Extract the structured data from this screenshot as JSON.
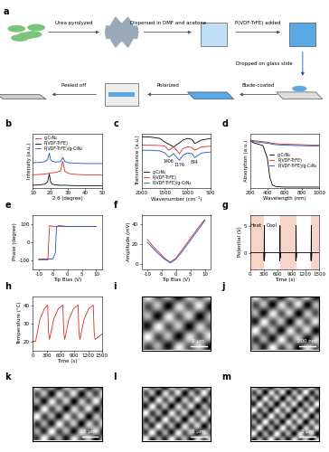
{
  "schematic": {
    "panel": "a",
    "steps_top": [
      "Urea pyrolyzed",
      "Dispersed in DMF and acetone",
      "P(VDF-TrFE) added"
    ],
    "down_step": "Dropped on glass slide",
    "steps_bottom": [
      "Peeled off",
      "Polarized",
      "Blade-coated"
    ]
  },
  "chart_data": [
    {
      "panel": "b",
      "type": "line",
      "xlabel": "2 θ (degree)",
      "ylabel": "Intensity (a.u.)",
      "x": [
        10,
        14,
        17,
        18.5,
        19.5,
        20.2,
        21,
        23,
        26,
        27.3,
        28.5,
        31,
        35,
        40,
        45,
        50
      ],
      "series": [
        {
          "name": "g-C₃N₄",
          "color": "#d62728",
          "values": [
            3.3,
            3.4,
            3.5,
            3.6,
            3.7,
            3.8,
            3.8,
            3.9,
            4.3,
            6.8,
            4.2,
            3.6,
            3.4,
            3.3,
            3.3,
            3.2
          ]
        },
        {
          "name": "P(VDF-TrFE)",
          "color": "#000000",
          "values": [
            0.6,
            0.7,
            0.9,
            1.5,
            3.5,
            1.6,
            0.9,
            0.7,
            0.6,
            0.6,
            0.6,
            0.55,
            0.5,
            0.5,
            0.5,
            0.5
          ]
        },
        {
          "name": "P(VDF-TrFE)/g-C₃N₄",
          "color": "#1f4fbf",
          "values": [
            6.4,
            6.5,
            6.7,
            7.2,
            8.9,
            7.3,
            6.8,
            6.6,
            6.7,
            7.8,
            6.7,
            6.4,
            6.3,
            6.2,
            6.2,
            6.2
          ]
        }
      ],
      "xlim": [
        10,
        50
      ],
      "xticks": [
        10,
        20,
        30,
        40,
        50
      ],
      "ylim": [
        0,
        14
      ],
      "yticks": [],
      "tick_labels": "x",
      "legend": "upper left"
    },
    {
      "panel": "c",
      "type": "line",
      "xlabel": "Wavenumber (cm⁻¹)",
      "ylabel": "Transmittance (a.u.)",
      "x": [
        2000,
        1800,
        1600,
        1500,
        1406,
        1300,
        1176,
        1100,
        1000,
        900,
        844,
        700,
        500
      ],
      "series": [
        {
          "name": "g-C₃N₄",
          "color": "#000000",
          "values": [
            9,
            8.9,
            8.5,
            7.5,
            6.8,
            6.0,
            7.2,
            8.0,
            8.5,
            8.2,
            7.0,
            8.0,
            8.5
          ]
        },
        {
          "name": "P(VDF-TrFE)",
          "color": "#d62728",
          "values": [
            6.5,
            6.5,
            6.4,
            6.3,
            5.0,
            6.0,
            4.0,
            5.5,
            6.0,
            5.8,
            5.0,
            6.0,
            6.2
          ]
        },
        {
          "name": "P(VDF-TrFE)/g-C₃N₄",
          "color": "#1f4fbf",
          "values": [
            5.0,
            5.0,
            4.8,
            4.3,
            3.0,
            4.0,
            2.0,
            3.5,
            4.2,
            4.0,
            2.8,
            4.2,
            4.5
          ]
        }
      ],
      "xlim": [
        2000,
        500
      ],
      "xticks": [
        2000,
        1500,
        1000,
        500
      ],
      "ylim": [
        -6,
        10
      ],
      "yticks": [],
      "tick_labels": "x",
      "legend": "lower left",
      "annotations": [
        {
          "text": "1406",
          "x": 1406
        },
        {
          "text": "1176",
          "x": 1176
        },
        {
          "text": "844",
          "x": 844
        }
      ]
    },
    {
      "panel": "d",
      "type": "line",
      "xlabel": "Wavelength (nm)",
      "ylabel": "Absorption (a.u.)",
      "x": [
        200,
        250,
        300,
        350,
        400,
        430,
        460,
        500,
        600,
        800,
        1000
      ],
      "series": [
        {
          "name": "g-C₃N₄",
          "color": "#000000",
          "values": [
            95,
            90,
            88,
            85,
            60,
            20,
            5,
            2,
            1,
            1,
            1
          ]
        },
        {
          "name": "P(VDF-TrFE)",
          "color": "#d62728",
          "values": [
            96,
            95,
            94,
            93,
            92,
            91,
            90,
            89,
            88,
            87,
            86
          ]
        },
        {
          "name": "P(VDF-TrFE)/g-C₃N₄",
          "color": "#1f4fbf",
          "values": [
            94,
            93,
            92,
            91,
            90,
            89,
            88,
            87,
            86,
            85,
            84
          ]
        }
      ],
      "xlim": [
        200,
        1000
      ],
      "xticks": [
        200,
        400,
        600,
        800,
        1000
      ],
      "ylim": [
        0,
        110
      ],
      "yticks": [],
      "tick_labels": "x",
      "legend": "center right"
    },
    {
      "panel": "e",
      "type": "line",
      "xlabel": "Tip Bias (V)",
      "ylabel": "Phase (degree)",
      "series": [
        {
          "color": "#d62728",
          "x": [
            -10,
            -8,
            -6.8,
            -6.5,
            -6.2,
            -5,
            0,
            5,
            10
          ],
          "values": [
            -100,
            -100,
            -100,
            0,
            90,
            85,
            85,
            85,
            85
          ]
        },
        {
          "color": "#1f4fbf",
          "x": [
            -10,
            -8,
            -5,
            -4.2,
            -3.8,
            -3,
            0,
            5,
            10
          ],
          "values": [
            -95,
            -95,
            -95,
            -60,
            80,
            90,
            85,
            85,
            85
          ]
        }
      ],
      "xlim": [
        -12,
        12
      ],
      "xticks": [
        -10,
        -5,
        0,
        5,
        10
      ],
      "ylim": [
        -150,
        150
      ],
      "yticks": [
        -100,
        0,
        100
      ]
    },
    {
      "panel": "f",
      "type": "line",
      "xlabel": "Tip Bias (V)",
      "ylabel": "Amplitude (mV)",
      "series": [
        {
          "color": "#d62728",
          "x": [
            -10,
            -8,
            -6,
            -4,
            -2,
            0,
            2,
            4,
            6,
            8,
            10
          ],
          "values": [
            25,
            18,
            12,
            6,
            2,
            6,
            14,
            22,
            30,
            38,
            45
          ]
        },
        {
          "color": "#1f4fbf",
          "x": [
            -10,
            -8,
            -6,
            -4,
            -2,
            0,
            2,
            4,
            6,
            8,
            10
          ],
          "values": [
            22,
            16,
            10,
            5,
            1,
            5,
            12,
            20,
            28,
            36,
            44
          ]
        }
      ],
      "xlim": [
        -12,
        12
      ],
      "xticks": [
        -10,
        -5,
        0,
        5,
        10
      ],
      "ylim": [
        -5,
        50
      ],
      "yticks": [
        0,
        20,
        40
      ]
    },
    {
      "panel": "g",
      "type": "line",
      "xlabel": "Time (s)",
      "ylabel": "Potential (V)",
      "x": [
        0,
        300,
        305,
        310,
        315,
        320,
        640,
        645,
        650,
        655,
        660,
        990,
        995,
        1000,
        1005,
        1010,
        1320,
        1325,
        1330,
        1335,
        1340,
        1500
      ],
      "series": [
        {
          "color": "#000000",
          "values": [
            0,
            0,
            -1.5,
            5,
            -1,
            0,
            0,
            -1.5,
            5,
            -1,
            0,
            0,
            -1.5,
            5,
            -1,
            0,
            0,
            -1.5,
            5,
            -1,
            0,
            0
          ]
        }
      ],
      "xlim": [
        0,
        1500
      ],
      "xticks": [
        0,
        300,
        600,
        900,
        1200,
        1500
      ],
      "ylim": [
        -3,
        7
      ],
      "yticks": [
        0,
        5
      ],
      "heat_spans": [
        [
          0,
          310
        ],
        [
          650,
          1000
        ],
        [
          1330,
          1500
        ]
      ],
      "annotations": [
        {
          "text": "Heat",
          "x": 130
        },
        {
          "text": "Cool",
          "x": 470
        }
      ]
    },
    {
      "panel": "h",
      "type": "line",
      "xlabel": "Time (s)",
      "ylabel": "Temperature (°C)",
      "x": [
        0,
        60,
        150,
        250,
        320,
        340,
        360,
        450,
        550,
        650,
        670,
        690,
        780,
        880,
        980,
        1000,
        1020,
        1110,
        1210,
        1310,
        1330,
        1350,
        1500
      ],
      "series": [
        {
          "color": "#d62728",
          "values": [
            20,
            20,
            32,
            38,
            40,
            25,
            21,
            32,
            38,
            40,
            25,
            21,
            32,
            38,
            40,
            25,
            21,
            32,
            38,
            40,
            25,
            21,
            24
          ]
        }
      ],
      "xlim": [
        0,
        1500
      ],
      "xticks": [
        0,
        300,
        600,
        900,
        1200,
        1500
      ],
      "ylim": [
        15,
        45
      ],
      "yticks": [
        20,
        30,
        40
      ]
    }
  ],
  "images": [
    {
      "panel": "i",
      "scale_bar": "2 μm"
    },
    {
      "panel": "j",
      "scale_bar": "200 nm"
    },
    {
      "panel": "k",
      "scale_bar": "5 μm"
    },
    {
      "panel": "l",
      "scale_bar": "5 μm"
    },
    {
      "panel": "m",
      "scale_bar": "2 μm"
    }
  ]
}
